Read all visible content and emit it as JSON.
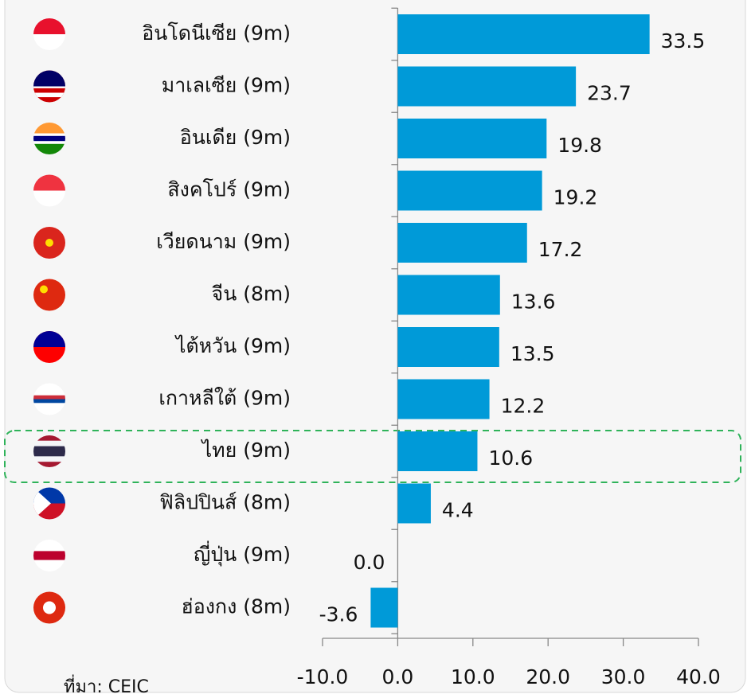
{
  "chart_data": {
    "type": "hbar",
    "categories": [
      "อินโดนีเซีย (9m)",
      "มาเลเซีย (9m)",
      "อินเดีย (9m)",
      "สิงคโปร์ (9m)",
      "เวียดนาม (9m)",
      "จีน (8m)",
      "ไต้หวัน (9m)",
      "เกาหลีใต้ (9m)",
      "ไทย (9m)",
      "ฟิลิปปินส์ (8m)",
      "ญี่ปุ่น (9m)",
      "ฮ่องกง (8m)"
    ],
    "values": [
      33.5,
      23.7,
      19.8,
      19.2,
      17.2,
      13.6,
      13.5,
      12.2,
      10.6,
      4.4,
      0.0,
      -3.6
    ],
    "value_labels": [
      "33.5",
      "23.7",
      "19.8",
      "19.2",
      "17.2",
      "13.6",
      "13.5",
      "12.2",
      "10.6",
      "4.4",
      "0.0",
      "-3.6"
    ],
    "color": "#009ad8",
    "xlim": [
      -10,
      40
    ],
    "xticks": [
      {
        "value": -10,
        "label": "-10.0"
      },
      {
        "value": 0,
        "label": "0.0"
      },
      {
        "value": 10,
        "label": "10.0"
      },
      {
        "value": 20,
        "label": "20.0"
      },
      {
        "value": 30,
        "label": "30.0"
      },
      {
        "value": 40,
        "label": "40.0"
      }
    ],
    "source": "ที่มา: CEIC"
  }
}
